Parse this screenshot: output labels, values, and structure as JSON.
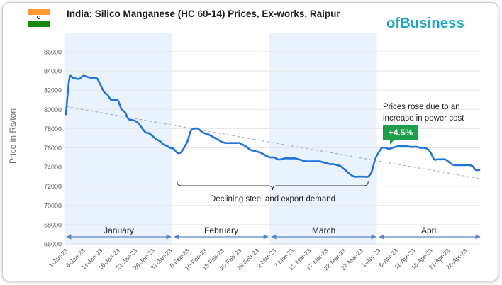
{
  "header": {
    "title": "India: Silico Manganese (HC 60-14) Prices, Ex-works, Raipur",
    "logo_text": "ofBusiness",
    "flag_colors": [
      "#FF9933",
      "#FFFFFF",
      "#138808"
    ]
  },
  "chart_data": {
    "type": "line",
    "title": "India: Silico Manganese (HC 60-14) Prices, Ex-works, Raipur",
    "ylabel": "Price in Rs/ton",
    "ylim": [
      66000,
      86000
    ],
    "yticks": [
      66000,
      68000,
      70000,
      72000,
      74000,
      76000,
      78000,
      80000,
      82000,
      84000,
      86000
    ],
    "xlim": [
      "1-Jan-23",
      "30-Apr-23"
    ],
    "xticks": [
      "1-Jan-23",
      "6-Jan-23",
      "11-Jan-23",
      "16-Jan-23",
      "21-Jan-23",
      "26-Jan-23",
      "31-Jan-23",
      "5-Feb-23",
      "10-Feb-23",
      "15-Feb-23",
      "20-Feb-23",
      "25-Feb-23",
      "2-Mar-23",
      "7-Mar-23",
      "12-Mar-23",
      "17-Mar-23",
      "22-Mar-23",
      "27-Mar-23",
      "1-Apr-23",
      "6-Apr-23",
      "11-Apr-23",
      "16-Apr-23",
      "21-Apr-23",
      "26-Apr-23"
    ],
    "grid": true,
    "series": [
      {
        "values": [
          [
            "1-Jan-23",
            79500
          ],
          [
            "2-Jan-23",
            83200
          ],
          [
            "3-Jan-23",
            83300
          ],
          [
            "4-Jan-23",
            83200
          ],
          [
            "5-Jan-23",
            83200
          ],
          [
            "6-Jan-23",
            83500
          ],
          [
            "7-Jan-23",
            83400
          ],
          [
            "8-Jan-23",
            83300
          ],
          [
            "9-Jan-23",
            83300
          ],
          [
            "10-Jan-23",
            83200
          ],
          [
            "11-Jan-23",
            82500
          ],
          [
            "12-Jan-23",
            81800
          ],
          [
            "13-Jan-23",
            81500
          ],
          [
            "14-Jan-23",
            81000
          ],
          [
            "15-Jan-23",
            81000
          ],
          [
            "16-Jan-23",
            80900
          ],
          [
            "17-Jan-23",
            80000
          ],
          [
            "18-Jan-23",
            79700
          ],
          [
            "19-Jan-23",
            79000
          ],
          [
            "20-Jan-23",
            78900
          ],
          [
            "21-Jan-23",
            78800
          ],
          [
            "22-Jan-23",
            78500
          ],
          [
            "23-Jan-23",
            78000
          ],
          [
            "24-Jan-23",
            77600
          ],
          [
            "25-Jan-23",
            77500
          ],
          [
            "26-Jan-23",
            77200
          ],
          [
            "27-Jan-23",
            76900
          ],
          [
            "28-Jan-23",
            76700
          ],
          [
            "29-Jan-23",
            76400
          ],
          [
            "30-Jan-23",
            76200
          ],
          [
            "31-Jan-23",
            76000
          ],
          [
            "1-Feb-23",
            75900
          ],
          [
            "2-Feb-23",
            75500
          ],
          [
            "3-Feb-23",
            75500
          ],
          [
            "4-Feb-23",
            76000
          ],
          [
            "5-Feb-23",
            76700
          ],
          [
            "6-Feb-23",
            77800
          ],
          [
            "7-Feb-23",
            78000
          ],
          [
            "8-Feb-23",
            78000
          ],
          [
            "9-Feb-23",
            77700
          ],
          [
            "10-Feb-23",
            77500
          ],
          [
            "11-Feb-23",
            77400
          ],
          [
            "12-Feb-23",
            77200
          ],
          [
            "13-Feb-23",
            77000
          ],
          [
            "14-Feb-23",
            76800
          ],
          [
            "15-Feb-23",
            76600
          ],
          [
            "16-Feb-23",
            76500
          ],
          [
            "17-Feb-23",
            76500
          ],
          [
            "18-Feb-23",
            76500
          ],
          [
            "19-Feb-23",
            76500
          ],
          [
            "20-Feb-23",
            76500
          ],
          [
            "21-Feb-23",
            76300
          ],
          [
            "22-Feb-23",
            76100
          ],
          [
            "23-Feb-23",
            75800
          ],
          [
            "24-Feb-23",
            75700
          ],
          [
            "25-Feb-23",
            75600
          ],
          [
            "26-Feb-23",
            75500
          ],
          [
            "27-Feb-23",
            75300
          ],
          [
            "28-Feb-23",
            75100
          ],
          [
            "1-Mar-23",
            75000
          ],
          [
            "2-Mar-23",
            75000
          ],
          [
            "3-Mar-23",
            74800
          ],
          [
            "4-Mar-23",
            74800
          ],
          [
            "5-Mar-23",
            74900
          ],
          [
            "6-Mar-23",
            74900
          ],
          [
            "7-Mar-23",
            74900
          ],
          [
            "8-Mar-23",
            74900
          ],
          [
            "9-Mar-23",
            74800
          ],
          [
            "10-Mar-23",
            74700
          ],
          [
            "11-Mar-23",
            74600
          ],
          [
            "12-Mar-23",
            74600
          ],
          [
            "13-Mar-23",
            74600
          ],
          [
            "14-Mar-23",
            74600
          ],
          [
            "15-Mar-23",
            74600
          ],
          [
            "16-Mar-23",
            74500
          ],
          [
            "17-Mar-23",
            74400
          ],
          [
            "18-Mar-23",
            74300
          ],
          [
            "19-Mar-23",
            74300
          ],
          [
            "20-Mar-23",
            74200
          ],
          [
            "21-Mar-23",
            74100
          ],
          [
            "22-Mar-23",
            73800
          ],
          [
            "23-Mar-23",
            73500
          ],
          [
            "24-Mar-23",
            73200
          ],
          [
            "25-Mar-23",
            73000
          ],
          [
            "26-Mar-23",
            73000
          ],
          [
            "27-Mar-23",
            73000
          ],
          [
            "28-Mar-23",
            73000
          ],
          [
            "29-Mar-23",
            73000
          ],
          [
            "30-Mar-23",
            73500
          ],
          [
            "31-Mar-23",
            74800
          ],
          [
            "1-Apr-23",
            75500
          ],
          [
            "2-Apr-23",
            76000
          ],
          [
            "3-Apr-23",
            76000
          ],
          [
            "4-Apr-23",
            75900
          ],
          [
            "5-Apr-23",
            76000
          ],
          [
            "6-Apr-23",
            76100
          ],
          [
            "7-Apr-23",
            76200
          ],
          [
            "8-Apr-23",
            76200
          ],
          [
            "9-Apr-23",
            76200
          ],
          [
            "10-Apr-23",
            76100
          ],
          [
            "11-Apr-23",
            76100
          ],
          [
            "12-Apr-23",
            76100
          ],
          [
            "13-Apr-23",
            76000
          ],
          [
            "14-Apr-23",
            76000
          ],
          [
            "15-Apr-23",
            75900
          ],
          [
            "16-Apr-23",
            75500
          ],
          [
            "17-Apr-23",
            74800
          ],
          [
            "18-Apr-23",
            74800
          ],
          [
            "19-Apr-23",
            74800
          ],
          [
            "20-Apr-23",
            74800
          ],
          [
            "21-Apr-23",
            74600
          ],
          [
            "22-Apr-23",
            74300
          ],
          [
            "23-Apr-23",
            74200
          ],
          [
            "24-Apr-23",
            74200
          ],
          [
            "25-Apr-23",
            74200
          ],
          [
            "26-Apr-23",
            74200
          ],
          [
            "27-Apr-23",
            74200
          ],
          [
            "28-Apr-23",
            74100
          ],
          [
            "29-Apr-23",
            73700
          ],
          [
            "30-Apr-23",
            73700
          ]
        ],
        "color": "#1f74d8"
      }
    ],
    "trendline": {
      "from": [
        "1-Jan-23",
        80300
      ],
      "to": [
        "30-Apr-23",
        72800
      ],
      "color": "#a9b6c8",
      "style": "dashed"
    },
    "month_bands": [
      {
        "label": "January",
        "from": "1-Jan-23",
        "to": "31-Jan-23",
        "shaded": true
      },
      {
        "label": "February",
        "from": "1-Feb-23",
        "to": "28-Feb-23",
        "shaded": false
      },
      {
        "label": "March",
        "from": "1-Mar-23",
        "to": "31-Mar-23",
        "shaded": true
      },
      {
        "label": "April",
        "from": "1-Apr-23",
        "to": "30-Apr-23",
        "shaded": false
      }
    ],
    "annotations": {
      "bracket_label": "Declining steel and export demand",
      "bracket_from": "2-Feb-23",
      "bracket_to": "29-Mar-23",
      "callout_line1": "Prices rose due to an",
      "callout_line2": "increase in power cost",
      "badge": "+4.5%",
      "badge_color": "#1d9e4a"
    },
    "colors": {
      "band_fill": "#eaf3fd",
      "grid": "#e6e6e6",
      "month_arrow": "#5b87c4"
    }
  }
}
